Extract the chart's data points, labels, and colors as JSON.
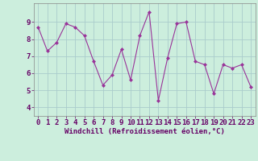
{
  "x": [
    0,
    1,
    2,
    3,
    4,
    5,
    6,
    7,
    8,
    9,
    10,
    11,
    12,
    13,
    14,
    15,
    16,
    17,
    18,
    19,
    20,
    21,
    22,
    23
  ],
  "y": [
    8.7,
    7.3,
    7.8,
    8.9,
    8.7,
    8.2,
    6.7,
    5.3,
    5.9,
    7.4,
    5.6,
    8.2,
    9.6,
    4.4,
    6.9,
    8.9,
    9.0,
    6.7,
    6.5,
    4.8,
    6.5,
    6.3,
    6.5,
    5.2
  ],
  "line_color": "#993399",
  "marker": "D",
  "markersize": 2,
  "linewidth": 0.8,
  "xlabel": "Windchill (Refroidissement éolien,°C)",
  "xlabel_fontsize": 6.5,
  "xlabel_color": "#660066",
  "xlabel_fontweight": "bold",
  "yticks": [
    4,
    5,
    6,
    7,
    8,
    9
  ],
  "ylim": [
    3.5,
    10.1
  ],
  "xlim": [
    -0.5,
    23.5
  ],
  "bg_color": "#cceedd",
  "grid_color": "#aacccc",
  "tick_fontsize": 6.5,
  "tick_color": "#660066"
}
